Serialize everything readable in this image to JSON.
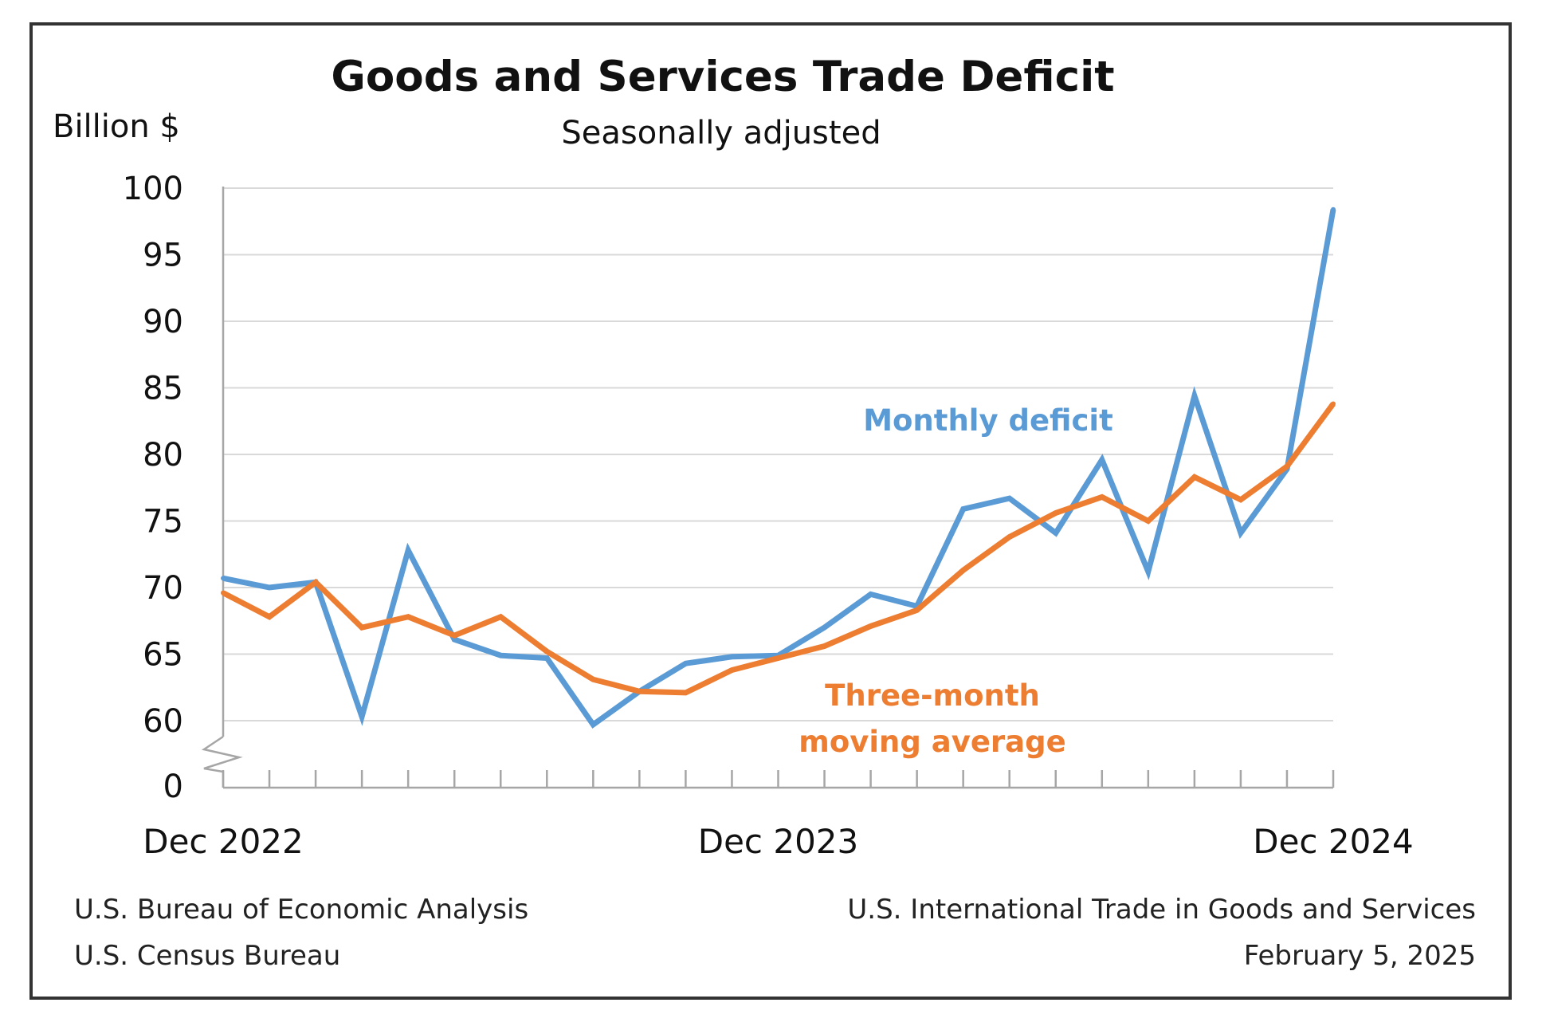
{
  "title": "Goods and Services Trade Deficit",
  "subtitle": "Seasonally adjusted",
  "footer": {
    "left_line1": "U.S. Bureau of Economic Analysis",
    "left_line2": "U.S. Census Bureau",
    "right_line1": "U.S. International Trade in Goods and Services",
    "right_line2": "February 5, 2025"
  },
  "chart_data": {
    "type": "line",
    "title": "Goods and Services Trade Deficit",
    "subtitle": "Seasonally adjusted",
    "ylabel": "Billion $",
    "xlabel": "",
    "ylim": [
      60,
      100
    ],
    "y_ticks": [
      "100",
      "95",
      "90",
      "85",
      "80",
      "75",
      "70",
      "65",
      "60"
    ],
    "y_break_label": "0",
    "x_tick_labels": [
      "Dec 2022",
      "Dec 2023",
      "Dec 2024"
    ],
    "grid": true,
    "categories": [
      "Dec 2022",
      "Jan 2023",
      "Feb 2023",
      "Mar 2023",
      "Apr 2023",
      "May 2023",
      "Jun 2023",
      "Jul 2023",
      "Aug 2023",
      "Sep 2023",
      "Oct 2023",
      "Nov 2023",
      "Dec 2023",
      "Jan 2024",
      "Feb 2024",
      "Mar 2024",
      "Apr 2024",
      "May 2024",
      "Jun 2024",
      "Jul 2024",
      "Aug 2024",
      "Sep 2024",
      "Oct 2024",
      "Nov 2024",
      "Dec 2024"
    ],
    "series": [
      {
        "name": "Monthly deficit",
        "color": "#5b9bd5",
        "values": [
          70.7,
          70.0,
          70.4,
          60.3,
          72.8,
          66.1,
          64.9,
          64.7,
          59.7,
          62.2,
          64.3,
          64.8,
          64.9,
          67.0,
          69.5,
          68.6,
          75.9,
          76.7,
          74.1,
          79.6,
          71.2,
          84.4,
          74.1,
          78.9,
          98.4
        ]
      },
      {
        "name": "Three-month moving average",
        "color": "#ed7d31",
        "values": [
          69.6,
          67.8,
          70.4,
          67.0,
          67.8,
          66.4,
          67.8,
          65.2,
          63.1,
          62.2,
          62.1,
          63.8,
          64.7,
          65.6,
          67.1,
          68.3,
          71.3,
          73.8,
          75.6,
          76.8,
          75.0,
          78.3,
          76.6,
          79.1,
          83.8
        ]
      }
    ],
    "annotations": [
      "Monthly deficit",
      "Three-month",
      "moving average"
    ]
  },
  "colors": {
    "monthly": "#5b9bd5",
    "average": "#ed7d31",
    "grid": "#d9d9d9",
    "axis": "#a6a6a6"
  }
}
